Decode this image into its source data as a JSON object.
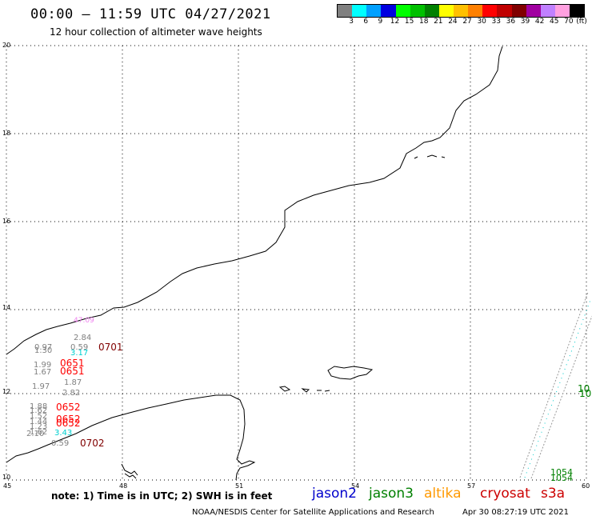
{
  "header": {
    "title": "00:00 – 11:59 UTC 04/27/2021",
    "subtitle": "12 hour collection of altimeter wave heights"
  },
  "legend": {
    "unit_label": "(ft)",
    "bins": [
      {
        "label": "3",
        "color": "#808080"
      },
      {
        "label": "6",
        "color": "#00ffff"
      },
      {
        "label": "9",
        "color": "#00a0ff"
      },
      {
        "label": "12",
        "color": "#0000e0"
      },
      {
        "label": "15",
        "color": "#00ff00"
      },
      {
        "label": "18",
        "color": "#00c000"
      },
      {
        "label": "21",
        "color": "#008000"
      },
      {
        "label": "24",
        "color": "#ffff00"
      },
      {
        "label": "27",
        "color": "#ffc000"
      },
      {
        "label": "30",
        "color": "#ff8000"
      },
      {
        "label": "33",
        "color": "#ff0000"
      },
      {
        "label": "36",
        "color": "#c00000"
      },
      {
        "label": "39",
        "color": "#800000"
      },
      {
        "label": "42",
        "color": "#a000a0"
      },
      {
        "label": "45",
        "color": "#c080ff"
      },
      {
        "label": "70",
        "color": "#ffa0e0"
      },
      {
        "label": "",
        "color": "#000000"
      }
    ]
  },
  "axes": {
    "lon_ticks": [
      "45",
      "48",
      "51",
      "54",
      "57",
      "60"
    ],
    "lat_ticks": [
      "20",
      "18",
      "16",
      "14",
      "12",
      "10"
    ]
  },
  "observations": [
    {
      "text": "47.09",
      "color": "#ee82ee"
    },
    {
      "text": "2.84",
      "color": "#808080"
    },
    {
      "text": "0.97",
      "color": "#808080"
    },
    {
      "text": "1.30",
      "color": "#808080"
    },
    {
      "text": "0.59",
      "color": "#808080"
    },
    {
      "text": "3.17",
      "color": "#00d0d0"
    },
    {
      "text": "0701",
      "color": "#800000"
    },
    {
      "text": "1.99",
      "color": "#808080"
    },
    {
      "text": "1.67",
      "color": "#808080"
    },
    {
      "text": "0651",
      "color": "#ff0000"
    },
    {
      "text": "0651",
      "color": "#ff0000"
    },
    {
      "text": "1.87",
      "color": "#808080"
    },
    {
      "text": "1.97",
      "color": "#808080"
    },
    {
      "text": "2.82",
      "color": "#808080"
    },
    {
      "text": "1.88",
      "color": "#808080"
    },
    {
      "text": "1.62",
      "color": "#808080"
    },
    {
      "text": "0652",
      "color": "#ff0000"
    },
    {
      "text": "1.52",
      "color": "#808080"
    },
    {
      "text": "1.44",
      "color": "#808080"
    },
    {
      "text": "1.23",
      "color": "#808080"
    },
    {
      "text": "0652",
      "color": "#ff0000"
    },
    {
      "text": "0652",
      "color": "#ff0000"
    },
    {
      "text": "1.62",
      "color": "#808080"
    },
    {
      "text": "2.10",
      "color": "#808080"
    },
    {
      "text": "3.43",
      "color": "#00d0d0"
    },
    {
      "text": "0.59",
      "color": "#808080"
    },
    {
      "text": "0702",
      "color": "#800000"
    },
    {
      "text": "1054",
      "color": "#008000"
    },
    {
      "text": "1054",
      "color": "#008000"
    },
    {
      "text": "10",
      "color": "#008000"
    },
    {
      "text": "10",
      "color": "#008000"
    }
  ],
  "footer": {
    "note": "note: 1) Time is in UTC; 2) SWH is in feet",
    "satellites": [
      {
        "name": "jason2",
        "color": "#0000cc"
      },
      {
        "name": "jason3",
        "color": "#008000"
      },
      {
        "name": "altika",
        "color": "#ff9900"
      },
      {
        "name": "cryosat",
        "color": "#cc0000"
      },
      {
        "name": "s3a",
        "color": "#cc0000"
      }
    ],
    "credit": "NOAA/NESDIS Center for Satellite Applications and Research",
    "timestamp": "Apr 30 08:27:19 UTC 2021"
  }
}
